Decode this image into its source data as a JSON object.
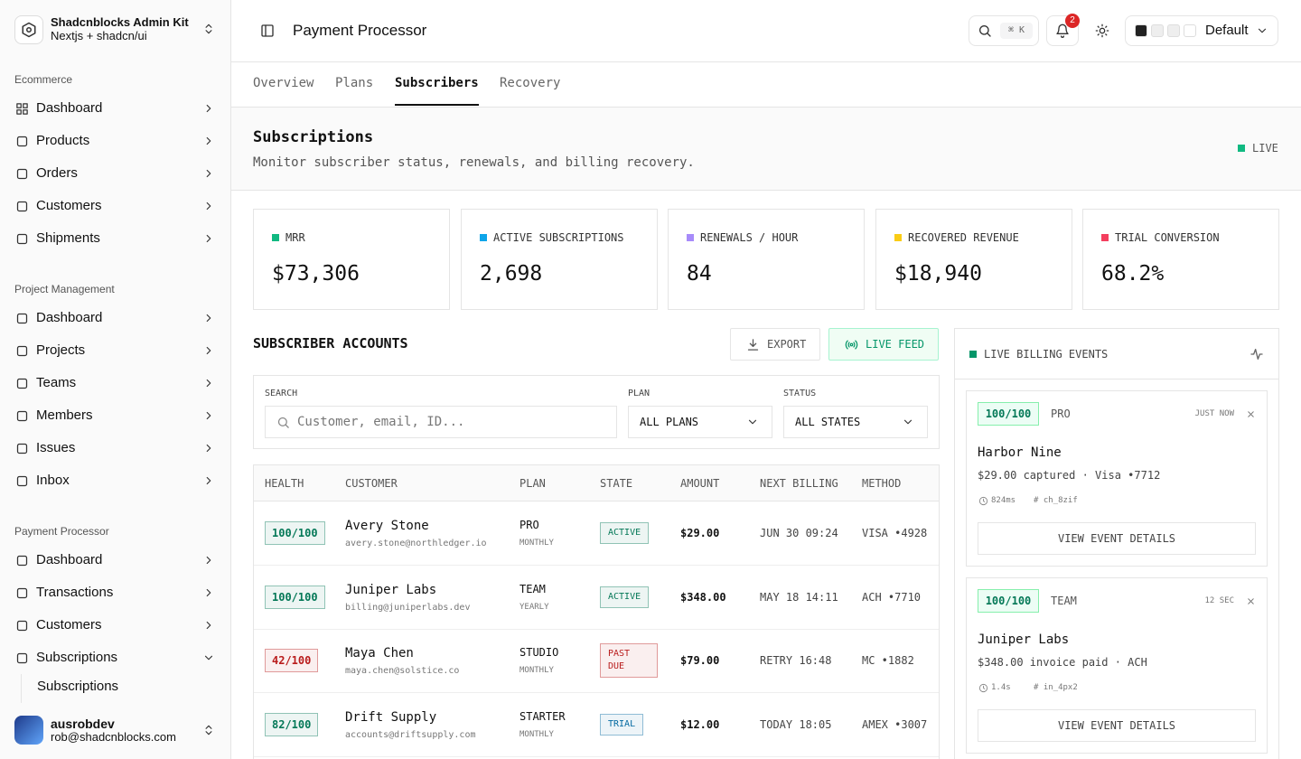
{
  "sidebar": {
    "brand": {
      "name": "Shadcnblocks Admin Kit",
      "subtitle": "Nextjs + shadcn/ui"
    },
    "groups": [
      {
        "label": "Ecommerce",
        "items": [
          {
            "label": "Dashboard"
          },
          {
            "label": "Products"
          },
          {
            "label": "Orders"
          },
          {
            "label": "Customers"
          },
          {
            "label": "Shipments"
          }
        ]
      },
      {
        "label": "Project Management",
        "items": [
          {
            "label": "Dashboard"
          },
          {
            "label": "Projects"
          },
          {
            "label": "Teams"
          },
          {
            "label": "Members"
          },
          {
            "label": "Issues"
          },
          {
            "label": "Inbox"
          }
        ]
      },
      {
        "label": "Payment Processor",
        "items": [
          {
            "label": "Dashboard"
          },
          {
            "label": "Transactions"
          },
          {
            "label": "Customers"
          },
          {
            "label": "Subscriptions",
            "children": [
              "Subscriptions"
            ]
          }
        ]
      }
    ],
    "user": {
      "name": "ausrobdev",
      "email": "rob@shadcnblocks.com"
    }
  },
  "header": {
    "title": "Payment Processor",
    "shortcut": "⌘ K",
    "notifications": 2,
    "theme": "Default"
  },
  "tabs": [
    "Overview",
    "Plans",
    "Subscribers",
    "Recovery"
  ],
  "page": {
    "title": "Subscriptions",
    "subtitle": "Monitor subscriber status, renewals, and billing recovery.",
    "status": "LIVE"
  },
  "kpis": [
    {
      "label": "MRR",
      "value": "$73,306",
      "color": "#10b981"
    },
    {
      "label": "ACTIVE SUBSCRIPTIONS",
      "value": "2,698",
      "color": "#0ea5e9"
    },
    {
      "label": "RENEWALS / HOUR",
      "value": "84",
      "color": "#a78bfa"
    },
    {
      "label": "RECOVERED REVENUE",
      "value": "$18,940",
      "color": "#facc15"
    },
    {
      "label": "TRIAL CONVERSION",
      "value": "68.2%",
      "color": "#f43f5e"
    }
  ],
  "accounts": {
    "title": "SUBSCRIBER ACCOUNTS",
    "export": "EXPORT",
    "live_feed": "LIVE FEED",
    "filters": {
      "search_label": "SEARCH",
      "search_placeholder": "Customer, email, ID...",
      "plan_label": "PLAN",
      "plan_value": "ALL PLANS",
      "status_label": "STATUS",
      "status_value": "ALL STATES"
    },
    "columns": [
      "HEALTH",
      "CUSTOMER",
      "PLAN",
      "STATE",
      "AMOUNT",
      "NEXT BILLING",
      "METHOD"
    ],
    "rows": [
      {
        "health": "100/100",
        "health_color": "#047857",
        "name": "Avery Stone",
        "email": "avery.stone@northledger.io",
        "plan": "PRO",
        "cycle": "MONTHLY",
        "state": "ACTIVE",
        "state_color": "#047857",
        "amount": "$29.00",
        "next": "JUN 30 09:24",
        "method": "VISA •4928"
      },
      {
        "health": "100/100",
        "health_color": "#047857",
        "name": "Juniper Labs",
        "email": "billing@juniperlabs.dev",
        "plan": "TEAM",
        "cycle": "YEARLY",
        "state": "ACTIVE",
        "state_color": "#047857",
        "amount": "$348.00",
        "next": "MAY 18 14:11",
        "method": "ACH •7710"
      },
      {
        "health": "42/100",
        "health_color": "#b91c1c",
        "name": "Maya Chen",
        "email": "maya.chen@solstice.co",
        "plan": "STUDIO",
        "cycle": "MONTHLY",
        "state": "PAST DUE",
        "state_color": "#b91c1c",
        "amount": "$79.00",
        "next": "RETRY 16:48",
        "method": "MC •1882"
      },
      {
        "health": "82/100",
        "health_color": "#047857",
        "name": "Drift Supply",
        "email": "accounts@driftsupply.com",
        "plan": "STARTER",
        "cycle": "MONTHLY",
        "state": "TRIAL",
        "state_color": "#0369a1",
        "amount": "$12.00",
        "next": "TODAY 18:05",
        "method": "AMEX •3007"
      }
    ]
  },
  "events": {
    "title": "LIVE BILLING EVENTS",
    "items": [
      {
        "score": "100/100",
        "plan": "PRO",
        "time": "JUST NOW",
        "name": "Harbor Nine",
        "detail": "$29.00 captured · Visa •7712",
        "latency": "824ms",
        "ref": "# ch_8zif",
        "button": "VIEW EVENT DETAILS"
      },
      {
        "score": "100/100",
        "plan": "TEAM",
        "time": "12 SEC",
        "name": "Juniper Labs",
        "detail": "$348.00 invoice paid · ACH",
        "latency": "1.4s",
        "ref": "# in_4px2",
        "button": "VIEW EVENT DETAILS"
      }
    ]
  }
}
